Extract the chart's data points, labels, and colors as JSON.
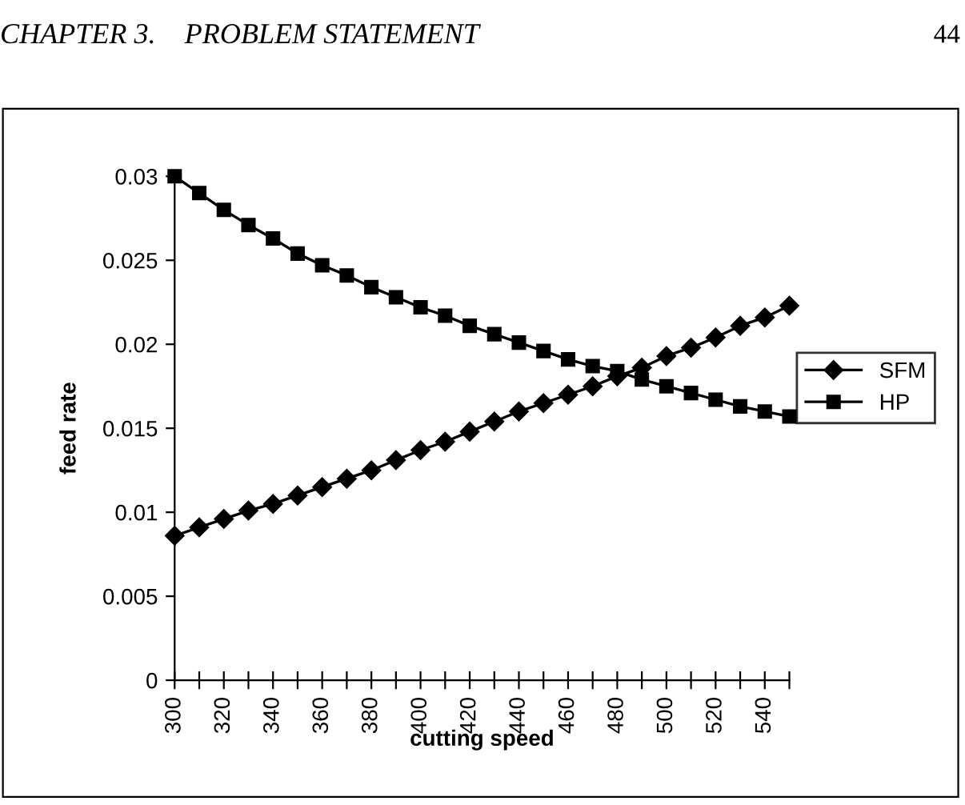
{
  "chart_data": {
    "type": "line",
    "xlabel": "cutting speed",
    "ylabel": "feed rate",
    "annotations": [
      "CHAPTER 3.    PROBLEM STATEMENT",
      "44"
    ],
    "categories": [
      "300",
      null,
      "320",
      null,
      "340",
      null,
      "360",
      null,
      "380",
      null,
      "400",
      null,
      "420",
      null,
      "440",
      null,
      "460",
      null,
      "480",
      null,
      "500",
      null,
      "520",
      null,
      "540",
      null
    ],
    "series": [
      {
        "name": "SFM",
        "color": "#000000",
        "marker": "diamond",
        "values": [
          0.0086,
          0.0091,
          0.0096,
          0.0101,
          0.0105,
          0.011,
          0.0115,
          0.012,
          0.0125,
          0.0131,
          0.0137,
          0.0142,
          0.0148,
          0.0154,
          0.016,
          0.0165,
          0.017,
          0.0175,
          0.0181,
          0.0186,
          0.0193,
          0.0198,
          0.0204,
          0.0211,
          0.0216,
          0.0223
        ]
      },
      {
        "name": "HP",
        "color": "#000000",
        "marker": "square",
        "values": [
          0.03,
          0.029,
          0.028,
          0.0271,
          0.0263,
          0.0254,
          0.0247,
          0.0241,
          0.0234,
          0.0228,
          0.0222,
          0.0217,
          0.0211,
          0.0206,
          0.0201,
          0.0196,
          0.0191,
          0.0187,
          0.0184,
          0.0179,
          0.0175,
          0.0171,
          0.0167,
          0.0163,
          0.016,
          0.0157
        ]
      }
    ],
    "ylim": [
      0,
      0.03
    ],
    "yticks": [
      0,
      0.005,
      0.01,
      0.015,
      0.02,
      0.025,
      0.03
    ],
    "grid": false,
    "legend": "right",
    "line_style": "solid"
  }
}
